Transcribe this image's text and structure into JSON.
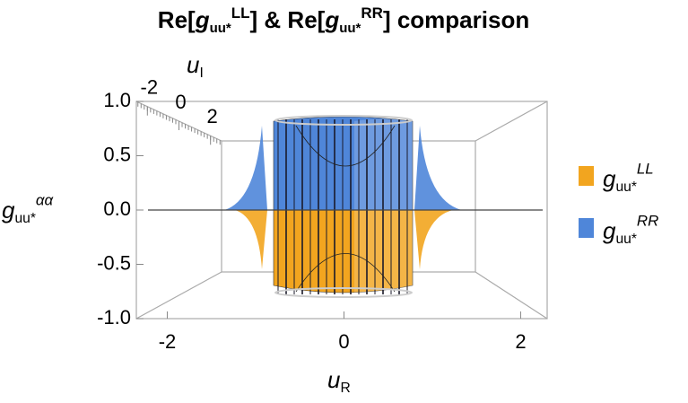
{
  "chart_data": {
    "type": "surface3d",
    "title_parts": [
      "Re[",
      "g",
      "uu*",
      "LL",
      "] & Re[",
      "g",
      "uu*",
      "RR",
      "] comparison"
    ],
    "xlabel": {
      "base": "u",
      "sub": "R"
    },
    "ylabel": {
      "base": "u",
      "sub": "I"
    },
    "zlabel": {
      "base": "g",
      "sub": "uu*",
      "sup": "αα"
    },
    "xlim": [
      -2.35,
      2.3
    ],
    "xticks": [
      -2,
      0,
      2
    ],
    "ylim": [
      -2.7,
      2.7
    ],
    "yticks": [
      -2,
      0,
      2
    ],
    "zlim": [
      -1,
      1
    ],
    "zticks": [
      {
        "value": -1,
        "label": "-1.0"
      },
      -0.5,
      {
        "value": 0,
        "label": "0.0"
      },
      0.5,
      {
        "value": 1,
        "label": "1.0"
      }
    ],
    "series": [
      {
        "name": {
          "base": "g",
          "sub": "uu*",
          "sup": "LL"
        },
        "color": "#f2a51f"
      },
      {
        "name": {
          "base": "g",
          "sub": "uu*",
          "sup": "RR"
        },
        "color": "#4f86d9"
      }
    ]
  }
}
